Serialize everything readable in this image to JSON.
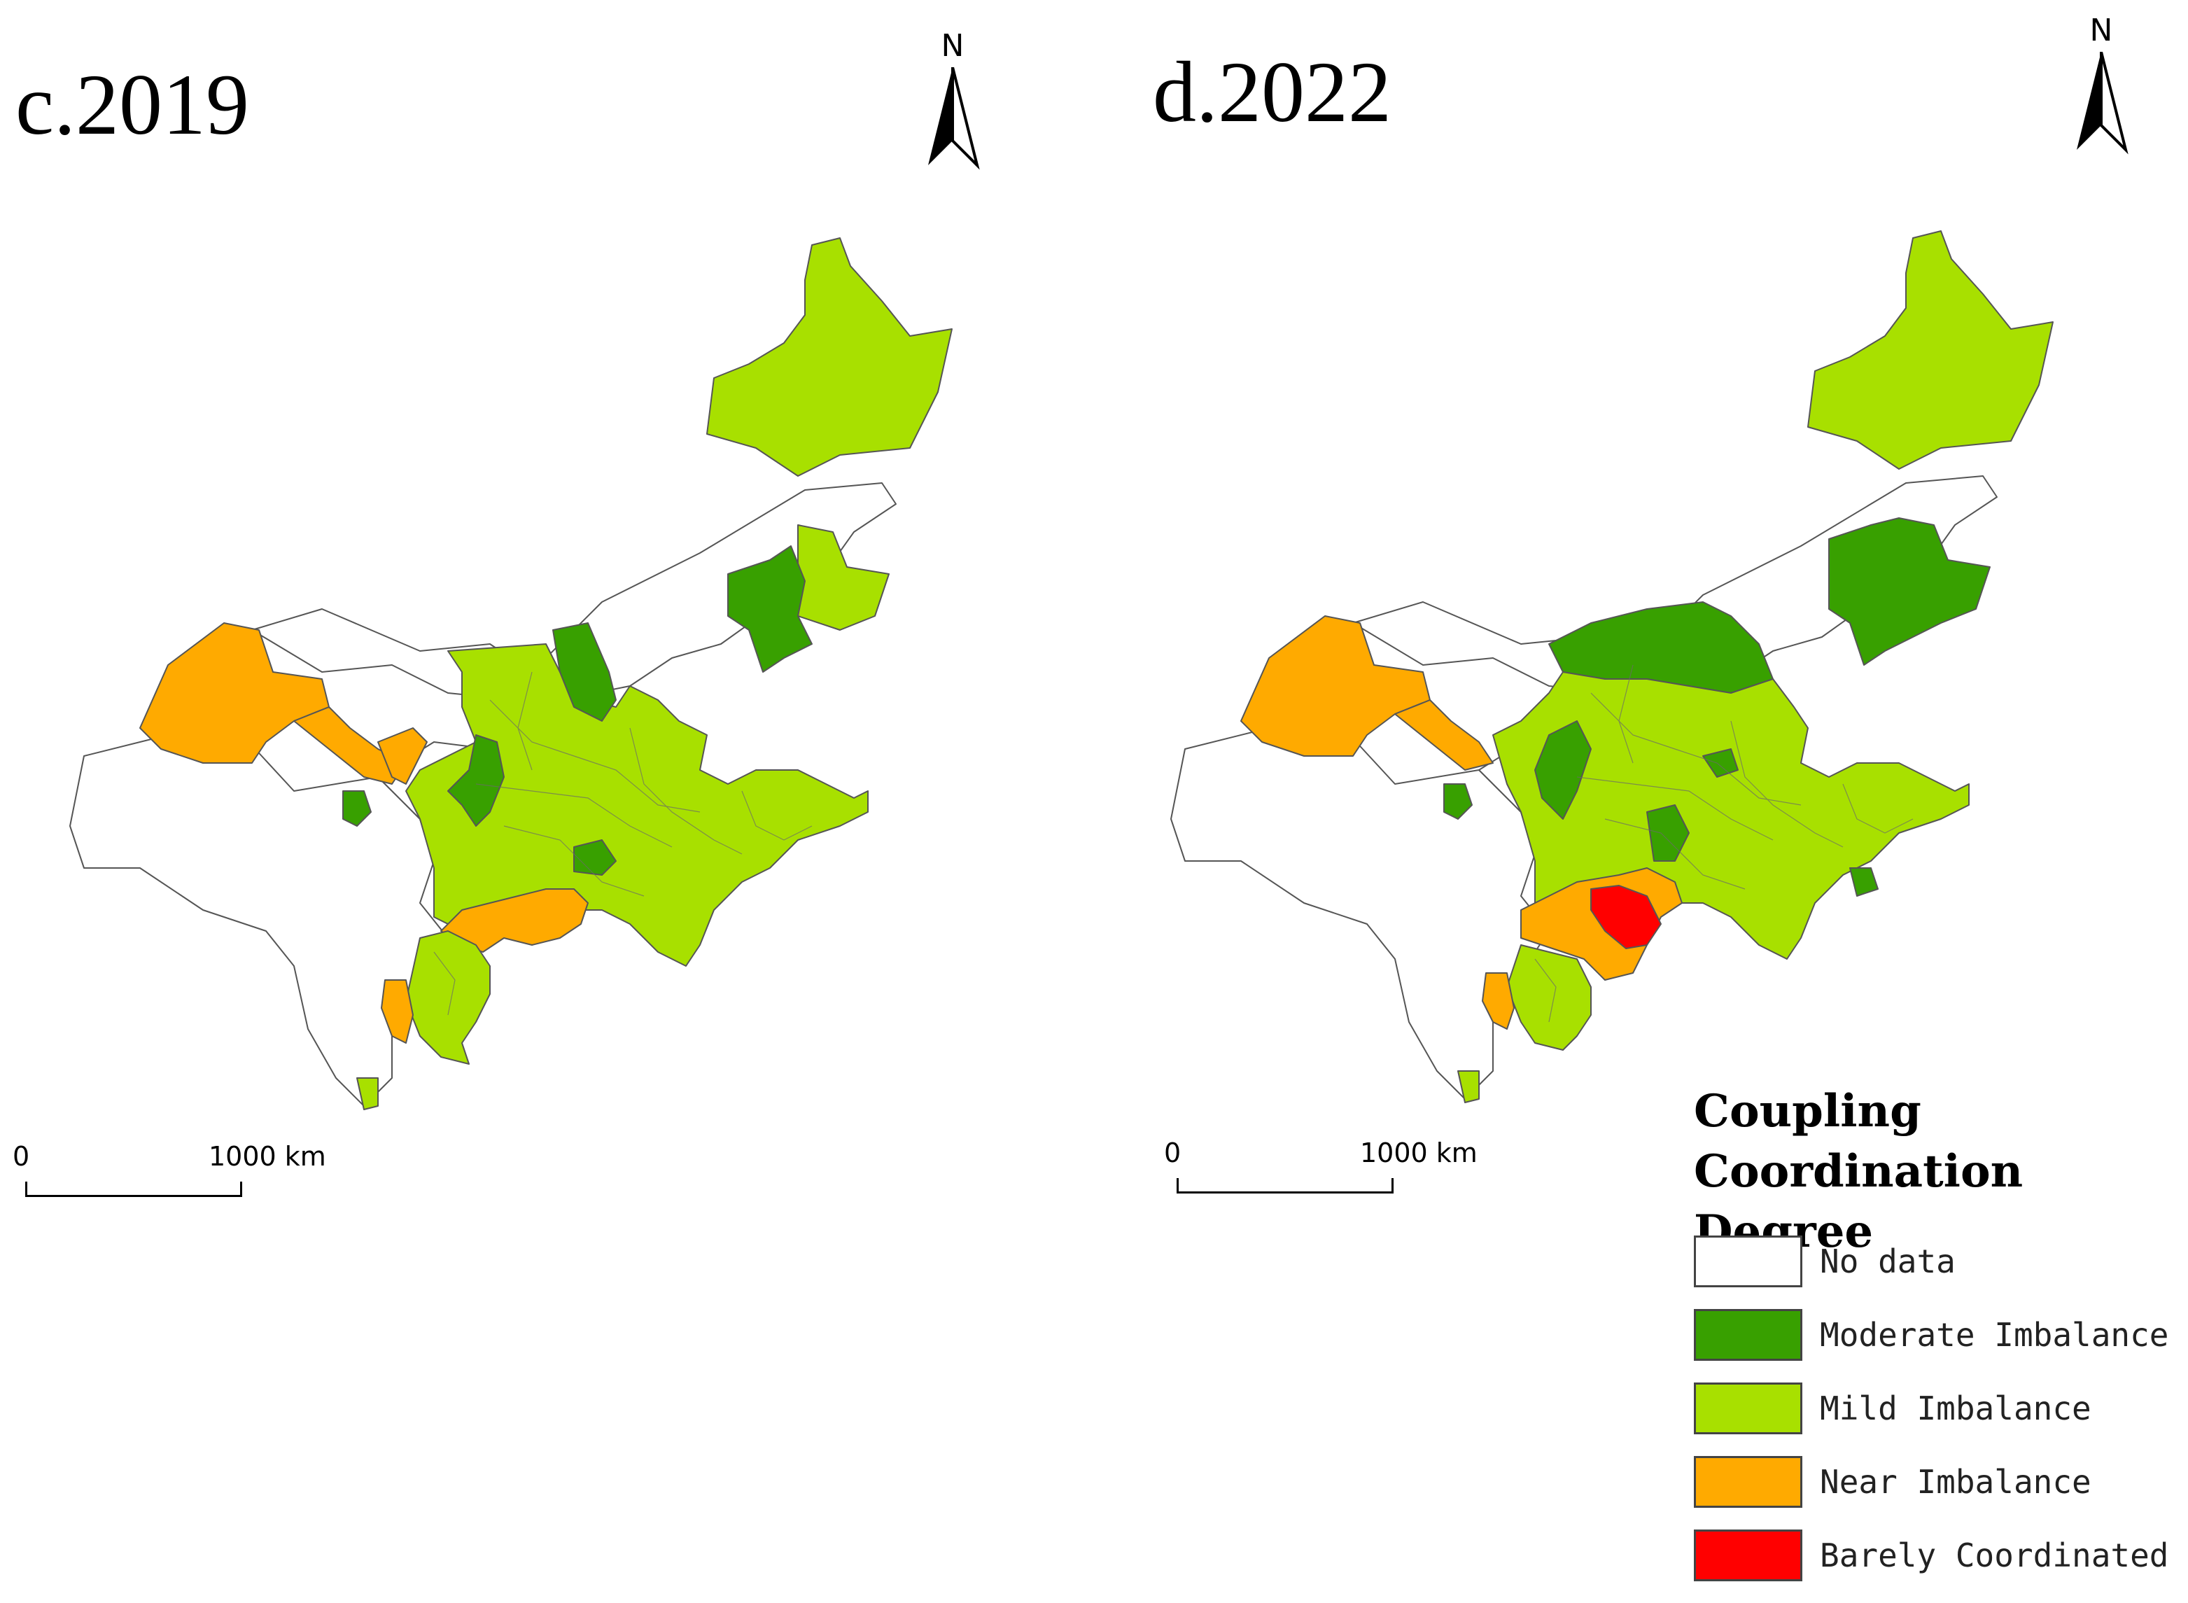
{
  "panels": [
    {
      "title": "c.2019",
      "north_label": "N",
      "scale": {
        "zero": "0",
        "max": "1000 km"
      }
    },
    {
      "title": "d.2022",
      "north_label": "N",
      "scale": {
        "zero": "0",
        "max": "1000 km"
      }
    }
  ],
  "legend": {
    "title_line1": "Coupling",
    "title_line2": "Coordination Degree",
    "items": [
      {
        "label": "No data",
        "color": "#ffffff"
      },
      {
        "label": "Moderate Imbalance",
        "color": "#38a000"
      },
      {
        "label": "Mild Imbalance",
        "color": "#a8e000"
      },
      {
        "label": "Near Imbalance",
        "color": "#ffaa00"
      },
      {
        "label": "Barely Coordinated",
        "color": "#ff0000"
      }
    ]
  }
}
